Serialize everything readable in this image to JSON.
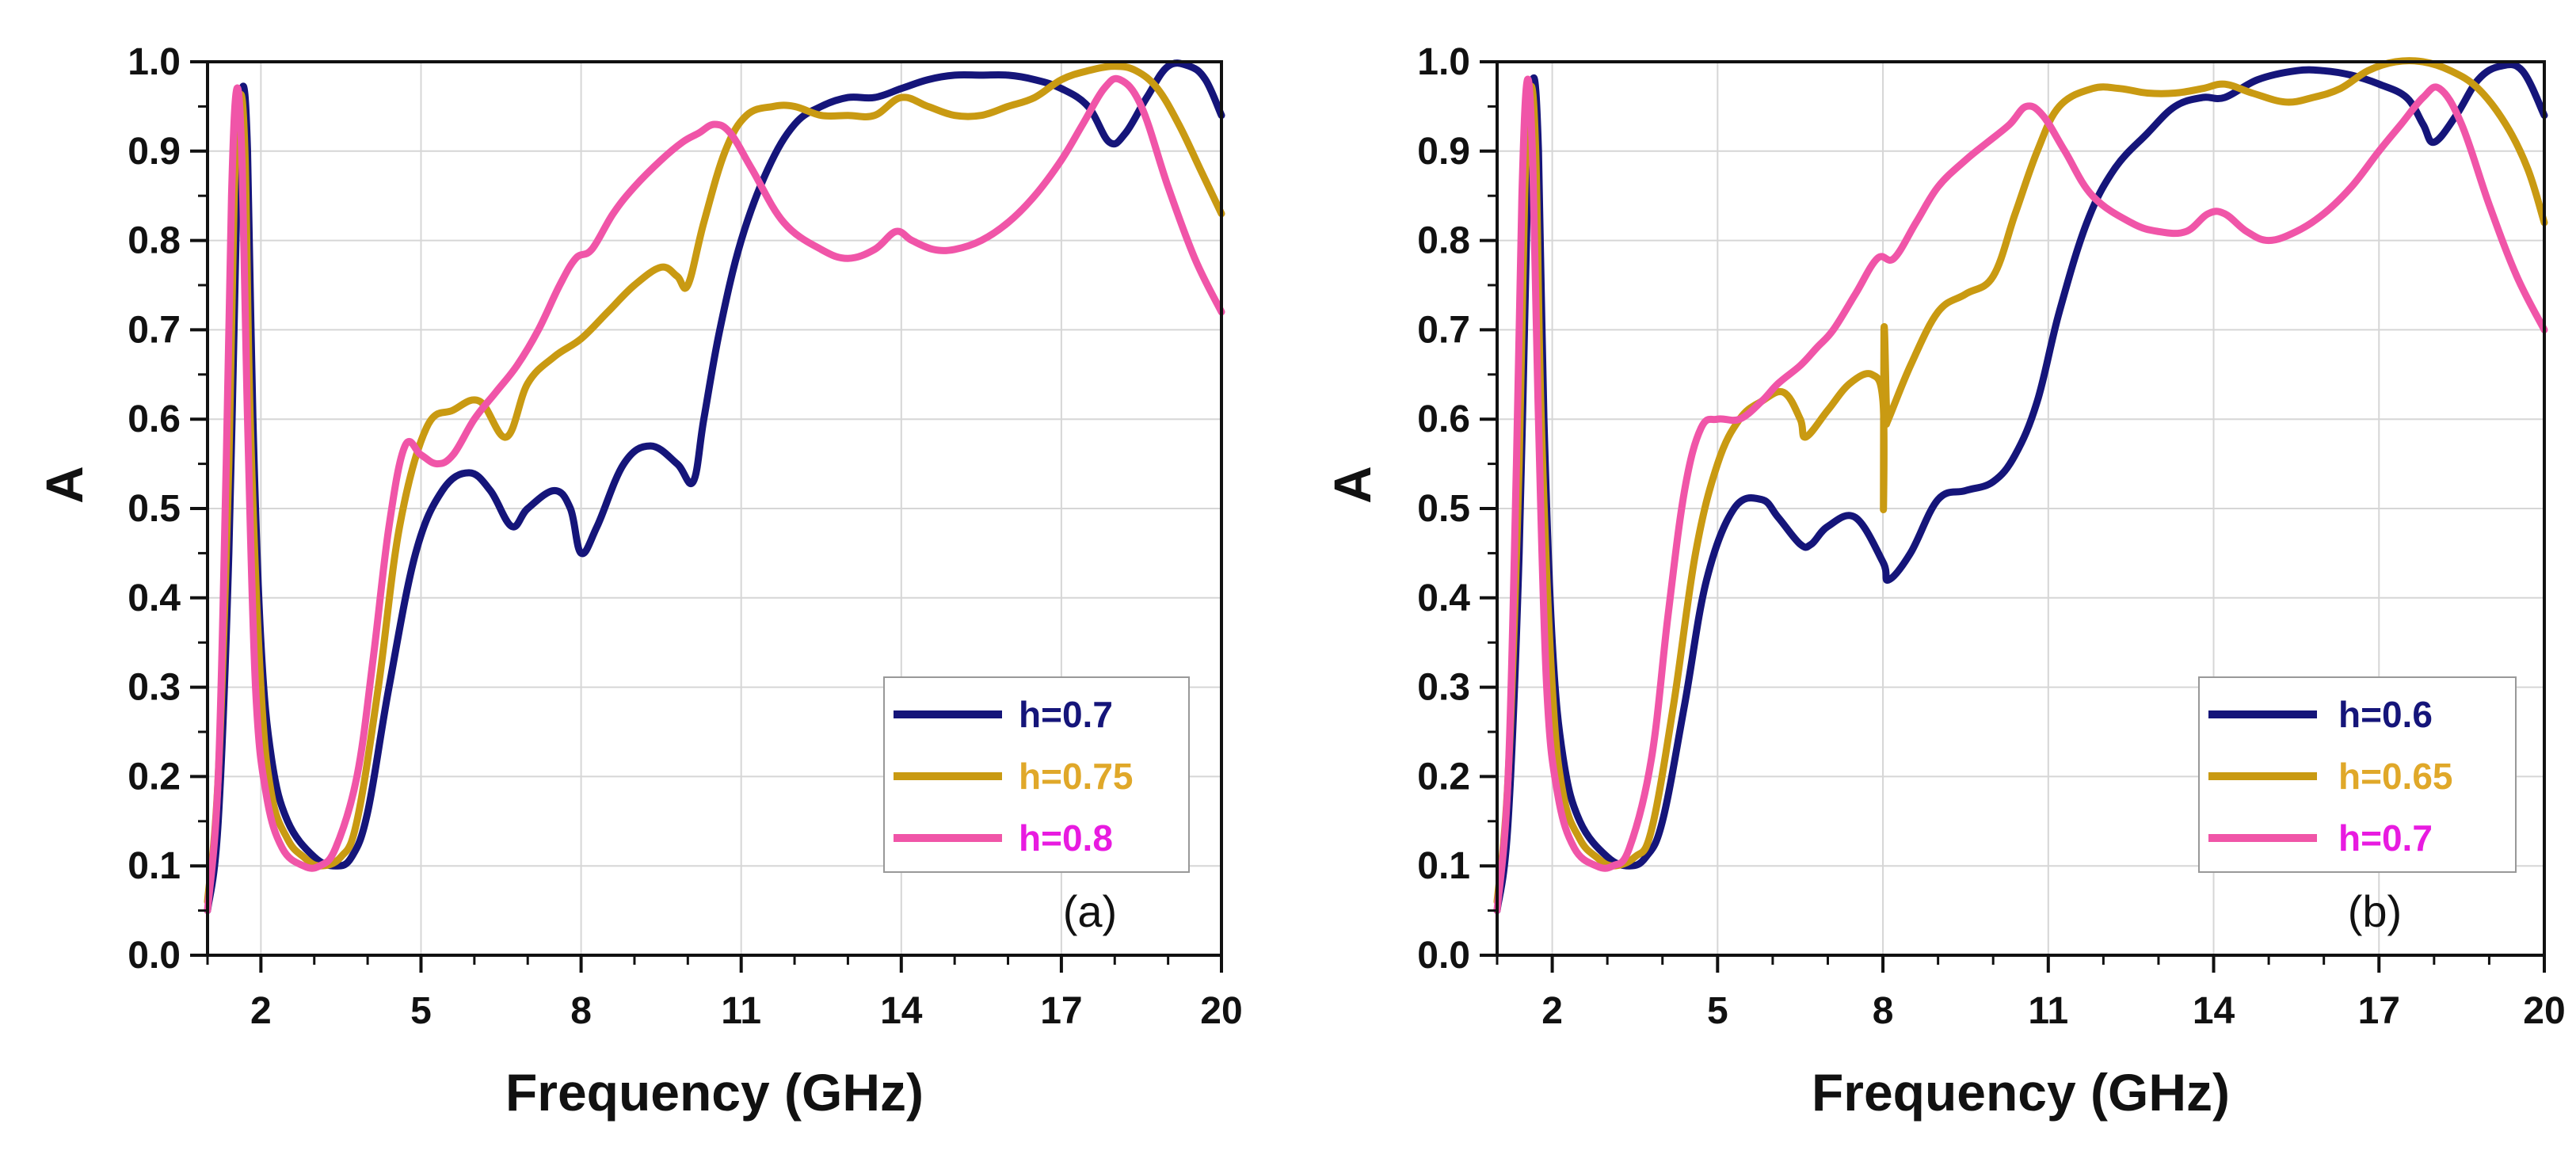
{
  "colors": {
    "navy": "#15157a",
    "gold": "#c99a12",
    "pink": "#f055a8",
    "legend_pink_text": "#e81be0",
    "legend_gold_text": "#e0a829"
  },
  "chart_data": [
    {
      "type": "line",
      "panel_label": "(a)",
      "xlabel": "Frequency (GHz)",
      "ylabel": "A",
      "xlim": [
        1,
        20
      ],
      "ylim": [
        0,
        1
      ],
      "xticks": [
        2,
        5,
        8,
        11,
        14,
        17,
        20
      ],
      "yticks": [
        0.0,
        0.1,
        0.2,
        0.3,
        0.4,
        0.5,
        0.6,
        0.7,
        0.8,
        0.9,
        1.0
      ],
      "ytick_labels": [
        "0.0",
        "0.1",
        "0.2",
        "0.3",
        "0.4",
        "0.5",
        "0.6",
        "0.7",
        "0.8",
        "0.9",
        "1.0"
      ],
      "grid": true,
      "legend_position": "bottom-right",
      "series": [
        {
          "name": "h=0.7",
          "color": "#15157a",
          "x": [
            1,
            1.2,
            1.4,
            1.55,
            1.65,
            1.75,
            1.85,
            2.0,
            2.2,
            2.5,
            3.0,
            3.4,
            3.7,
            4.0,
            4.4,
            4.9,
            5.4,
            5.9,
            6.3,
            6.7,
            7.0,
            7.5,
            7.8,
            8.0,
            8.3,
            8.8,
            9.3,
            9.8,
            10.1,
            10.3,
            10.6,
            11.0,
            11.5,
            12.0,
            12.5,
            13.0,
            13.5,
            14.0,
            14.5,
            15.0,
            15.5,
            16.0,
            16.5,
            17.0,
            17.5,
            17.9,
            18.2,
            18.6,
            19.0,
            19.4,
            19.7,
            20
          ],
          "y": [
            0.05,
            0.15,
            0.45,
            0.85,
            0.97,
            0.9,
            0.6,
            0.35,
            0.22,
            0.15,
            0.11,
            0.1,
            0.11,
            0.16,
            0.3,
            0.45,
            0.52,
            0.54,
            0.52,
            0.48,
            0.5,
            0.52,
            0.5,
            0.45,
            0.48,
            0.55,
            0.57,
            0.55,
            0.53,
            0.6,
            0.7,
            0.8,
            0.88,
            0.93,
            0.95,
            0.96,
            0.96,
            0.97,
            0.98,
            0.985,
            0.985,
            0.985,
            0.98,
            0.97,
            0.95,
            0.91,
            0.92,
            0.96,
            0.995,
            0.995,
            0.98,
            0.94
          ]
        },
        {
          "name": "h=0.75",
          "color": "#c99a12",
          "x": [
            1,
            1.2,
            1.4,
            1.5,
            1.6,
            1.7,
            1.8,
            2.0,
            2.2,
            2.5,
            2.8,
            3.1,
            3.5,
            3.8,
            4.2,
            4.6,
            5.1,
            5.6,
            6.1,
            6.6,
            7.0,
            7.5,
            8.0,
            8.5,
            9.0,
            9.5,
            9.8,
            10.0,
            10.3,
            10.7,
            11.1,
            11.6,
            12.0,
            12.5,
            13.0,
            13.5,
            14.0,
            14.5,
            15.0,
            15.5,
            16.0,
            16.5,
            17.0,
            17.5,
            18.0,
            18.4,
            18.8,
            19.2,
            19.6,
            20
          ],
          "y": [
            0.06,
            0.2,
            0.55,
            0.85,
            0.96,
            0.9,
            0.6,
            0.3,
            0.18,
            0.13,
            0.11,
            0.1,
            0.11,
            0.15,
            0.3,
            0.48,
            0.59,
            0.61,
            0.62,
            0.58,
            0.64,
            0.67,
            0.69,
            0.72,
            0.75,
            0.77,
            0.76,
            0.75,
            0.82,
            0.9,
            0.94,
            0.95,
            0.95,
            0.94,
            0.94,
            0.94,
            0.96,
            0.95,
            0.94,
            0.94,
            0.95,
            0.96,
            0.98,
            0.99,
            0.995,
            0.99,
            0.97,
            0.93,
            0.88,
            0.83
          ]
        },
        {
          "name": "h=0.8",
          "color": "#f055a8",
          "x": [
            1,
            1.2,
            1.35,
            1.45,
            1.55,
            1.65,
            1.75,
            1.9,
            2.1,
            2.4,
            2.8,
            3.1,
            3.4,
            3.8,
            4.1,
            4.4,
            4.7,
            5.0,
            5.3,
            5.6,
            6.0,
            6.4,
            6.8,
            7.2,
            7.6,
            7.9,
            8.2,
            8.6,
            9.0,
            9.5,
            9.9,
            10.2,
            10.5,
            10.8,
            11.2,
            11.8,
            12.5,
            13.0,
            13.5,
            13.9,
            14.2,
            14.6,
            15.0,
            15.5,
            16.0,
            16.5,
            17.0,
            17.4,
            17.8,
            18.1,
            18.5,
            19.0,
            19.5,
            20
          ],
          "y": [
            0.05,
            0.2,
            0.55,
            0.85,
            0.97,
            0.88,
            0.6,
            0.3,
            0.18,
            0.12,
            0.1,
            0.1,
            0.12,
            0.2,
            0.33,
            0.48,
            0.57,
            0.56,
            0.55,
            0.56,
            0.6,
            0.63,
            0.66,
            0.7,
            0.75,
            0.78,
            0.79,
            0.83,
            0.86,
            0.89,
            0.91,
            0.92,
            0.93,
            0.92,
            0.88,
            0.82,
            0.79,
            0.78,
            0.79,
            0.81,
            0.8,
            0.79,
            0.79,
            0.8,
            0.82,
            0.85,
            0.89,
            0.93,
            0.97,
            0.98,
            0.95,
            0.86,
            0.78,
            0.72
          ]
        }
      ]
    },
    {
      "type": "line",
      "panel_label": "(b)",
      "xlabel": "Frequency (GHz)",
      "ylabel": "A",
      "xlim": [
        1,
        20
      ],
      "ylim": [
        0,
        1
      ],
      "xticks": [
        2,
        5,
        8,
        11,
        14,
        17,
        20
      ],
      "yticks": [
        0.0,
        0.1,
        0.2,
        0.3,
        0.4,
        0.5,
        0.6,
        0.7,
        0.8,
        0.9,
        1.0
      ],
      "ytick_labels": [
        "0.0",
        "0.1",
        "0.2",
        "0.3",
        "0.4",
        "0.5",
        "0.6",
        "0.7",
        "0.8",
        "0.9",
        "1.0"
      ],
      "grid": true,
      "legend_position": "bottom-right",
      "series": [
        {
          "name": "h=0.6",
          "color": "#15157a",
          "x": [
            1,
            1.2,
            1.4,
            1.55,
            1.65,
            1.75,
            1.85,
            2.0,
            2.2,
            2.5,
            3.0,
            3.4,
            3.7,
            4.0,
            4.4,
            4.8,
            5.3,
            5.8,
            6.1,
            6.5,
            6.7,
            7.0,
            7.5,
            8.0,
            8.1,
            8.5,
            9.0,
            9.5,
            10.0,
            10.4,
            10.8,
            11.2,
            11.7,
            12.2,
            12.8,
            13.3,
            13.8,
            14.2,
            14.8,
            15.5,
            16.0,
            16.5,
            17.0,
            17.5,
            17.8,
            18.0,
            18.4,
            18.8,
            19.2,
            19.6,
            20
          ],
          "y": [
            0.05,
            0.15,
            0.45,
            0.85,
            0.98,
            0.9,
            0.6,
            0.35,
            0.22,
            0.15,
            0.11,
            0.1,
            0.11,
            0.15,
            0.28,
            0.42,
            0.5,
            0.51,
            0.49,
            0.46,
            0.46,
            0.48,
            0.49,
            0.44,
            0.42,
            0.45,
            0.51,
            0.52,
            0.53,
            0.56,
            0.62,
            0.72,
            0.82,
            0.88,
            0.92,
            0.95,
            0.96,
            0.96,
            0.98,
            0.99,
            0.99,
            0.985,
            0.975,
            0.96,
            0.93,
            0.91,
            0.94,
            0.98,
            0.995,
            0.99,
            0.94
          ]
        },
        {
          "name": "h=0.65",
          "color": "#c99a12",
          "x": [
            1,
            1.2,
            1.4,
            1.5,
            1.6,
            1.7,
            1.8,
            2.0,
            2.2,
            2.5,
            2.8,
            3.1,
            3.5,
            3.8,
            4.2,
            4.6,
            5.0,
            5.4,
            5.8,
            6.2,
            6.5,
            6.6,
            7.0,
            7.4,
            7.8,
            8.0,
            8.01,
            8.02,
            8.06,
            8.08,
            8.1,
            8.5,
            9.0,
            9.5,
            10.0,
            10.4,
            10.8,
            11.2,
            11.8,
            12.3,
            12.8,
            13.3,
            13.8,
            14.2,
            14.7,
            15.3,
            15.8,
            16.3,
            16.8,
            17.3,
            17.8,
            18.3,
            18.8,
            19.3,
            19.7,
            20
          ],
          "y": [
            0.06,
            0.2,
            0.55,
            0.85,
            0.97,
            0.9,
            0.6,
            0.3,
            0.18,
            0.13,
            0.11,
            0.1,
            0.11,
            0.14,
            0.28,
            0.45,
            0.55,
            0.6,
            0.62,
            0.63,
            0.6,
            0.58,
            0.61,
            0.64,
            0.65,
            0.62,
            0.5,
            0.7,
            0.62,
            0.6,
            0.6,
            0.66,
            0.72,
            0.74,
            0.76,
            0.83,
            0.9,
            0.95,
            0.97,
            0.97,
            0.965,
            0.965,
            0.97,
            0.975,
            0.965,
            0.955,
            0.96,
            0.97,
            0.99,
            1.0,
            1.0,
            0.99,
            0.97,
            0.93,
            0.88,
            0.82
          ]
        },
        {
          "name": "h=0.7",
          "color": "#f055a8",
          "x": [
            1,
            1.2,
            1.35,
            1.45,
            1.55,
            1.65,
            1.75,
            1.9,
            2.1,
            2.4,
            2.8,
            3.1,
            3.4,
            3.8,
            4.1,
            4.4,
            4.7,
            5.0,
            5.4,
            5.8,
            6.1,
            6.5,
            6.8,
            7.1,
            7.5,
            7.9,
            8.2,
            8.6,
            9.0,
            9.5,
            9.9,
            10.3,
            10.6,
            10.9,
            11.3,
            11.8,
            12.5,
            13.0,
            13.5,
            13.9,
            14.2,
            14.6,
            15.0,
            15.5,
            16.0,
            16.5,
            17.0,
            17.4,
            17.8,
            18.1,
            18.5,
            19.0,
            19.5,
            20
          ],
          "y": [
            0.05,
            0.2,
            0.55,
            0.85,
            0.98,
            0.88,
            0.6,
            0.3,
            0.18,
            0.12,
            0.1,
            0.1,
            0.12,
            0.22,
            0.38,
            0.52,
            0.59,
            0.6,
            0.6,
            0.62,
            0.64,
            0.66,
            0.68,
            0.7,
            0.74,
            0.78,
            0.78,
            0.82,
            0.86,
            0.89,
            0.91,
            0.93,
            0.95,
            0.94,
            0.9,
            0.85,
            0.82,
            0.81,
            0.81,
            0.83,
            0.83,
            0.81,
            0.8,
            0.81,
            0.83,
            0.86,
            0.9,
            0.93,
            0.96,
            0.97,
            0.93,
            0.84,
            0.76,
            0.7
          ]
        }
      ]
    }
  ]
}
